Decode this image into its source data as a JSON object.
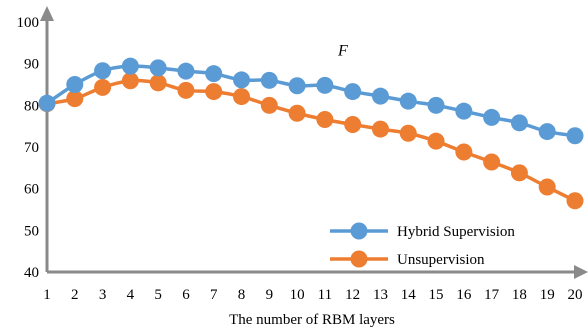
{
  "chart_data": {
    "type": "line",
    "title": "",
    "xlabel": "The number of RBM layers",
    "ylabel": "",
    "x": [
      1,
      2,
      3,
      4,
      5,
      6,
      7,
      8,
      9,
      10,
      11,
      12,
      13,
      14,
      15,
      16,
      17,
      18,
      19,
      20
    ],
    "xlim": [
      1,
      20
    ],
    "ylim": [
      40,
      100
    ],
    "yticks": [
      40,
      50,
      60,
      70,
      80,
      90,
      100
    ],
    "grid": false,
    "legend_position": "bottom-right",
    "annotations": [
      {
        "text": "F",
        "x": 11,
        "y": 92
      }
    ],
    "series": [
      {
        "name": "Hybrid Supervision",
        "color": "#5b9bd5",
        "values": [
          80.5,
          85.0,
          88.3,
          89.4,
          89.0,
          88.2,
          87.6,
          86.1,
          86.0,
          84.7,
          84.8,
          83.3,
          82.2,
          81.0,
          80.0,
          78.6,
          77.1,
          75.8,
          73.7,
          72.7
        ]
      },
      {
        "name": "Unsupervision",
        "color": "#ed7d31",
        "values": [
          80.4,
          81.6,
          84.3,
          85.9,
          85.4,
          83.6,
          83.3,
          82.1,
          80.0,
          78.1,
          76.6,
          75.4,
          74.3,
          73.3,
          71.4,
          68.8,
          66.4,
          63.8,
          60.4,
          57.1
        ]
      }
    ]
  }
}
